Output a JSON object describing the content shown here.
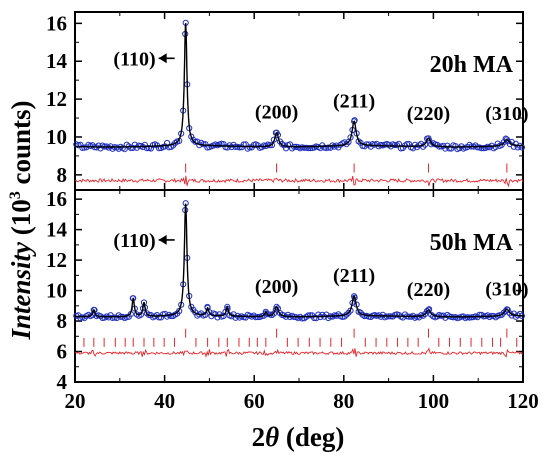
{
  "chart_data": {
    "type": "line",
    "xlabel": {
      "prefix": "2",
      "symbol": "θ",
      "suffix": " (deg)"
    },
    "ylabel": {
      "italic": "Intensity",
      "rest_before": " (10",
      "sup": "3",
      "rest_after": " counts)"
    },
    "xlim": [
      20,
      120
    ],
    "x_ticks": [
      20,
      40,
      60,
      80,
      100,
      120
    ],
    "colors": {
      "observed": "#1f2fbf",
      "calculated": "#000000",
      "difference": "#e8242a",
      "bragg_ticks": "#e8242a"
    },
    "panels": [
      {
        "label": "20h MA",
        "ylim": [
          7.2,
          16.6
        ],
        "y_ticks": [
          8,
          10,
          12,
          14,
          16
        ],
        "baseline": 9.5,
        "difference_baseline": 7.7,
        "noise": 0.12,
        "peaks": [
          {
            "x": 44.7,
            "height": 6.5,
            "width": 0.35,
            "label": "(110)",
            "arrow": true
          },
          {
            "x": 65.0,
            "height": 0.75,
            "width": 0.5,
            "label": "(200)"
          },
          {
            "x": 82.3,
            "height": 1.3,
            "width": 0.55,
            "label": "(211)"
          },
          {
            "x": 98.9,
            "height": 0.45,
            "width": 0.6,
            "label": "(220)"
          },
          {
            "x": 116.4,
            "height": 0.35,
            "width": 0.7,
            "label": "(310)"
          }
        ],
        "bragg_ticks": [
          44.7,
          65.0,
          82.3,
          98.9,
          116.4
        ]
      },
      {
        "label": "50h MA",
        "ylim": [
          4,
          16.6
        ],
        "y_ticks": [
          4,
          6,
          8,
          10,
          12,
          14,
          16
        ],
        "baseline": 8.3,
        "difference_baseline": 5.9,
        "noise": 0.12,
        "peaks": [
          {
            "x": 24.2,
            "height": 0.45,
            "width": 0.3
          },
          {
            "x": 33.0,
            "height": 1.2,
            "width": 0.3
          },
          {
            "x": 35.4,
            "height": 0.9,
            "width": 0.3
          },
          {
            "x": 44.7,
            "height": 7.4,
            "width": 0.35,
            "label": "(110)",
            "arrow": true
          },
          {
            "x": 49.6,
            "height": 0.5,
            "width": 0.3
          },
          {
            "x": 54.0,
            "height": 0.6,
            "width": 0.3
          },
          {
            "x": 62.6,
            "height": 0.3,
            "width": 0.3
          },
          {
            "x": 65.0,
            "height": 0.65,
            "width": 0.5,
            "label": "(200)"
          },
          {
            "x": 82.3,
            "height": 1.3,
            "width": 0.55,
            "label": "(211)"
          },
          {
            "x": 98.9,
            "height": 0.45,
            "width": 0.6,
            "label": "(220)"
          },
          {
            "x": 116.4,
            "height": 0.45,
            "width": 0.7,
            "label": "(310)"
          }
        ],
        "bragg_ticks_phase1": [
          44.7,
          65.0,
          82.3,
          98.9,
          116.4
        ],
        "bragg_ticks_phase2": [
          22.0,
          24.2,
          26.5,
          29.0,
          31.2,
          33.0,
          35.4,
          37.6,
          39.9,
          42.2,
          47.0,
          49.6,
          52.1,
          54.0,
          56.6,
          58.9,
          60.7,
          62.6,
          67.4,
          69.8,
          72.3,
          74.7,
          77.1,
          79.5,
          84.8,
          87.2,
          89.6,
          92.0,
          94.3,
          96.6,
          101.2,
          103.6,
          106.0,
          108.4,
          110.8,
          113.2,
          115.0,
          118.6
        ]
      }
    ]
  }
}
